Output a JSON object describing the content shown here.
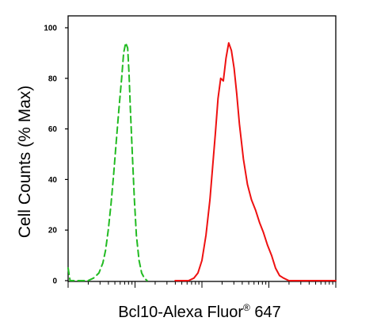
{
  "chart_data": {
    "type": "line",
    "title": "",
    "ylabel": "Cell Counts (% Max)",
    "xlabel_main": "Bcl10-Alexa Fluor",
    "xlabel_sup": "®",
    "xlabel_tail": " 647",
    "x_scale": "log",
    "xlim": [
      0,
      4
    ],
    "ylim": [
      0,
      100
    ],
    "y_ticks": [
      "0",
      "20",
      "40",
      "60",
      "80",
      "100"
    ],
    "y_tick_values": [
      0,
      20,
      40,
      60,
      80,
      100
    ],
    "grid": false,
    "legend": "none",
    "series": [
      {
        "color": "#22bb22",
        "dash": "dashed",
        "x": [
          0.0,
          0.03,
          0.08,
          0.14,
          0.22,
          0.3,
          0.38,
          0.46,
          0.52,
          0.56,
          0.6,
          0.64,
          0.68,
          0.72,
          0.76,
          0.8,
          0.83,
          0.86,
          0.89,
          0.91,
          0.93,
          0.96,
          0.99,
          1.02,
          1.06,
          1.1,
          1.14,
          1.18
        ],
        "y": [
          5,
          0,
          0,
          0,
          0,
          0,
          1,
          3,
          7,
          12,
          20,
          30,
          42,
          55,
          68,
          80,
          90,
          94,
          92,
          82,
          68,
          50,
          32,
          18,
          8,
          3,
          1,
          0
        ]
      },
      {
        "color": "#ee1111",
        "dash": "solid",
        "x": [
          1.6,
          1.7,
          1.8,
          1.88,
          1.94,
          2.0,
          2.06,
          2.12,
          2.16,
          2.2,
          2.24,
          2.28,
          2.32,
          2.36,
          2.4,
          2.44,
          2.48,
          2.52,
          2.56,
          2.62,
          2.68,
          2.74,
          2.8,
          2.86,
          2.92,
          2.98,
          3.04,
          3.1,
          3.16,
          3.22,
          3.3,
          3.4,
          3.6,
          3.8,
          4.0
        ],
        "y": [
          0,
          0,
          0,
          1,
          3,
          8,
          18,
          32,
          45,
          58,
          72,
          80,
          79,
          88,
          94,
          91,
          84,
          74,
          62,
          48,
          38,
          32,
          28,
          23,
          19,
          14,
          10,
          5,
          2,
          1,
          0,
          0,
          0,
          0,
          0
        ]
      }
    ]
  }
}
